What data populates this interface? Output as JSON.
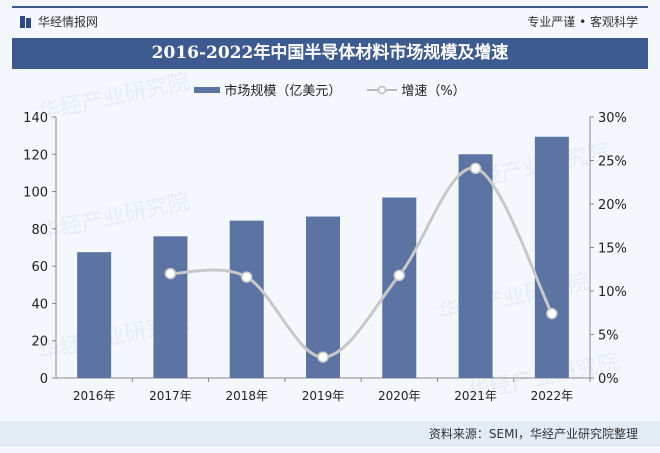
{
  "header": {
    "brand": "华经情报网",
    "slogan": "专业严谨 • 客观科学"
  },
  "title": "2016-2022年中国半导体材料市场规模及增速",
  "footer": {
    "source": "资料来源：SEMI，华经产业研究院整理"
  },
  "watermark": "华经产业研究院",
  "colors": {
    "bar": "#5b74a4",
    "line": "#c8c8c8",
    "title_bg": "#3d5a91"
  },
  "chart_data": {
    "type": "bar+line",
    "title": "2016-2022年中国半导体材料市场规模及增速",
    "categories": [
      "2016年",
      "2017年",
      "2018年",
      "2019年",
      "2020年",
      "2021年",
      "2022年"
    ],
    "series": [
      {
        "name": "市场规模（亿美元）",
        "type": "bar",
        "axis": "left",
        "values": [
          67.5,
          76.0,
          84.4,
          86.6,
          96.8,
          120.0,
          129.4
        ]
      },
      {
        "name": "增速（%）",
        "type": "line",
        "axis": "right",
        "values": [
          null,
          12.0,
          11.6,
          2.4,
          11.8,
          24.1,
          7.4
        ]
      }
    ],
    "left_axis": {
      "ylim": [
        0,
        140
      ],
      "ticks": [
        "0",
        "20",
        "40",
        "60",
        "80",
        "100",
        "120",
        "140"
      ]
    },
    "right_axis": {
      "ylim": [
        0,
        30
      ],
      "ticks": [
        "0%",
        "5%",
        "10%",
        "15%",
        "20%",
        "25%",
        "30%"
      ]
    },
    "legend": "top",
    "grid": false
  }
}
